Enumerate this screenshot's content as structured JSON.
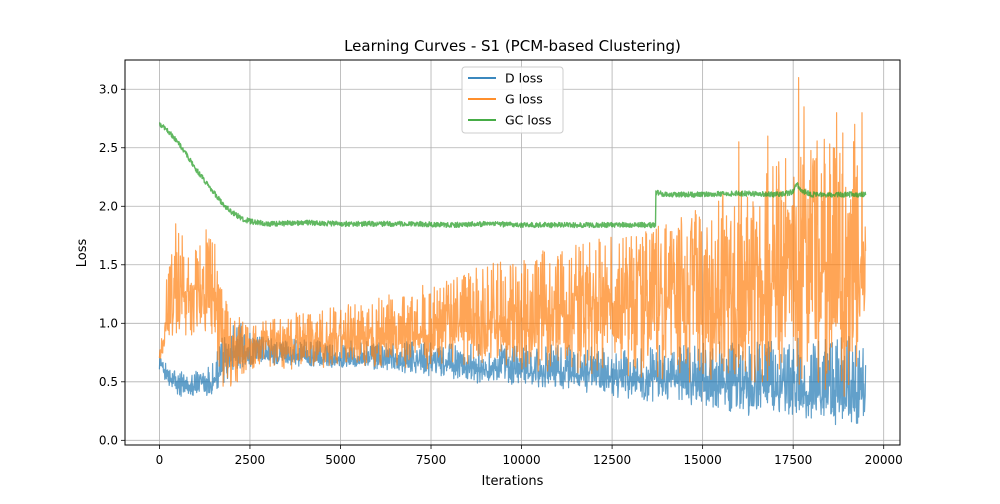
{
  "chart_data": {
    "type": "line",
    "title": "Learning Curves - S1 (PCM-based Clustering)",
    "xlabel": "Iterations",
    "ylabel": "Loss",
    "xlim": [
      -950,
      20450
    ],
    "ylim": [
      -0.04,
      3.25
    ],
    "xticks": [
      0,
      2500,
      5000,
      7500,
      10000,
      12500,
      15000,
      17500,
      20000
    ],
    "yticks": [
      0.0,
      0.5,
      1.0,
      1.5,
      2.0,
      2.5,
      3.0
    ],
    "xtick_labels": [
      "0",
      "2500",
      "5000",
      "7500",
      "10000",
      "12500",
      "15000",
      "17500",
      "20000"
    ],
    "ytick_labels": [
      "0.0",
      "0.5",
      "1.0",
      "1.5",
      "2.0",
      "2.5",
      "3.0"
    ],
    "grid": true,
    "legend_position": "top-center",
    "iterations": 19500,
    "series": [
      {
        "name": "D loss",
        "color": "#1f77b4",
        "x": [
          0,
          100,
          250,
          500,
          750,
          1000,
          1250,
          1500,
          1750,
          2000,
          2250,
          2500,
          3000,
          4000,
          5000,
          6000,
          7000,
          8000,
          9000,
          10000,
          11000,
          12000,
          13000,
          14000,
          15000,
          16000,
          17000,
          18000,
          19000,
          19500
        ],
        "low": [
          0.6,
          0.55,
          0.45,
          0.33,
          0.36,
          0.36,
          0.35,
          0.38,
          0.48,
          0.55,
          0.6,
          0.62,
          0.63,
          0.63,
          0.62,
          0.6,
          0.56,
          0.52,
          0.48,
          0.45,
          0.42,
          0.38,
          0.35,
          0.3,
          0.25,
          0.22,
          0.18,
          0.14,
          0.1,
          0.12
        ],
        "mid": [
          0.68,
          0.62,
          0.52,
          0.47,
          0.47,
          0.48,
          0.48,
          0.52,
          0.65,
          0.7,
          0.72,
          0.72,
          0.72,
          0.71,
          0.7,
          0.69,
          0.67,
          0.65,
          0.62,
          0.6,
          0.58,
          0.56,
          0.55,
          0.52,
          0.5,
          0.48,
          0.45,
          0.42,
          0.4,
          0.4
        ],
        "high": [
          0.72,
          0.7,
          0.62,
          0.6,
          0.6,
          0.6,
          0.62,
          0.7,
          0.95,
          1.0,
          1.0,
          0.92,
          0.88,
          0.86,
          0.85,
          0.85,
          0.84,
          0.83,
          0.82,
          0.82,
          0.82,
          0.8,
          0.8,
          0.82,
          0.85,
          0.85,
          0.88,
          0.88,
          0.9,
          0.85
        ]
      },
      {
        "name": "G loss",
        "color": "#ff7f0e",
        "x": [
          0,
          100,
          250,
          500,
          750,
          1000,
          1250,
          1500,
          1750,
          2000,
          2250,
          2500,
          3000,
          4000,
          5000,
          6000,
          7000,
          8000,
          9000,
          10000,
          11000,
          12000,
          13000,
          14000,
          15000,
          16000,
          17000,
          18000,
          19000,
          19500
        ],
        "low": [
          0.65,
          0.7,
          0.75,
          0.85,
          0.88,
          0.9,
          0.88,
          0.85,
          0.4,
          0.42,
          0.5,
          0.55,
          0.58,
          0.6,
          0.62,
          0.62,
          0.6,
          0.6,
          0.58,
          0.55,
          0.52,
          0.5,
          0.48,
          0.45,
          0.42,
          0.4,
          0.38,
          0.36,
          0.35,
          0.35
        ],
        "mid": [
          0.7,
          0.85,
          1.05,
          1.25,
          1.25,
          1.3,
          1.3,
          1.25,
          0.8,
          0.75,
          0.75,
          0.78,
          0.8,
          0.82,
          0.85,
          0.88,
          0.92,
          0.95,
          0.98,
          1.02,
          1.08,
          1.12,
          1.18,
          1.22,
          1.28,
          1.32,
          1.38,
          1.42,
          1.45,
          1.48
        ],
        "high": [
          0.75,
          1.0,
          1.6,
          1.92,
          1.7,
          1.75,
          1.8,
          1.95,
          1.25,
          1.1,
          1.05,
          1.05,
          1.05,
          1.1,
          1.15,
          1.22,
          1.3,
          1.4,
          1.5,
          1.58,
          1.65,
          1.72,
          1.78,
          1.85,
          2.0,
          2.2,
          2.35,
          2.6,
          2.7,
          2.6
        ],
        "spikes": [
          [
            16000,
            2.55
          ],
          [
            16800,
            2.6
          ],
          [
            17100,
            2.38
          ],
          [
            17650,
            3.1
          ],
          [
            17800,
            2.85
          ],
          [
            18700,
            2.8
          ],
          [
            19200,
            2.7
          ],
          [
            19400,
            2.8
          ]
        ]
      },
      {
        "name": "GC loss",
        "color": "#2ca02c",
        "x": [
          0,
          200,
          500,
          750,
          1000,
          1250,
          1500,
          1750,
          2000,
          2250,
          2500,
          2750,
          3000,
          4000,
          5000,
          6000,
          7000,
          8000,
          9000,
          10000,
          11000,
          12000,
          13000,
          13700,
          13710,
          14000,
          15000,
          16000,
          17000,
          17500,
          17600,
          17700,
          18000,
          19000,
          19500
        ],
        "y": [
          2.7,
          2.66,
          2.55,
          2.44,
          2.32,
          2.22,
          2.12,
          2.02,
          1.95,
          1.9,
          1.87,
          1.86,
          1.85,
          1.86,
          1.85,
          1.85,
          1.85,
          1.84,
          1.85,
          1.84,
          1.84,
          1.84,
          1.84,
          1.84,
          2.12,
          2.1,
          2.1,
          2.11,
          2.1,
          2.12,
          2.2,
          2.14,
          2.1,
          2.1,
          2.1
        ],
        "noise": 0.022
      }
    ]
  }
}
